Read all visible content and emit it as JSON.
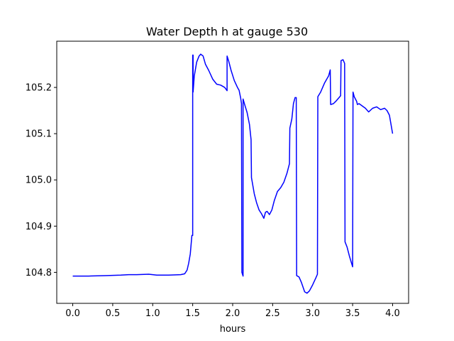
{
  "chart_data": {
    "type": "line",
    "title": "Water Depth h at gauge 530",
    "xlabel": "hours",
    "ylabel": "",
    "xlim": [
      -0.2,
      4.2
    ],
    "ylim": [
      104.733,
      105.3
    ],
    "xticks": [
      0.0,
      0.5,
      1.0,
      1.5,
      2.0,
      2.5,
      3.0,
      3.5,
      4.0
    ],
    "xtick_labels": [
      "0.0",
      "0.5",
      "1.0",
      "1.5",
      "2.0",
      "2.5",
      "3.0",
      "3.5",
      "4.0"
    ],
    "yticks": [
      104.8,
      104.9,
      105.0,
      105.1,
      105.2
    ],
    "ytick_labels": [
      "104.8",
      "104.9",
      "105.0",
      "105.1",
      "105.2"
    ],
    "grid": false,
    "series": [
      {
        "color": "#0000ff",
        "points": [
          [
            0.0,
            104.792
          ],
          [
            0.2,
            104.792
          ],
          [
            0.4,
            104.793
          ],
          [
            0.6,
            104.794
          ],
          [
            0.7,
            104.795
          ],
          [
            0.8,
            104.795
          ],
          [
            0.95,
            104.796
          ],
          [
            1.05,
            104.794
          ],
          [
            1.2,
            104.794
          ],
          [
            1.35,
            104.795
          ],
          [
            1.4,
            104.797
          ],
          [
            1.43,
            104.805
          ],
          [
            1.45,
            104.82
          ],
          [
            1.47,
            104.84
          ],
          [
            1.49,
            104.88
          ],
          [
            1.5,
            104.88
          ],
          [
            1.5,
            105.27
          ],
          [
            1.505,
            105.27
          ],
          [
            1.505,
            105.19
          ],
          [
            1.52,
            105.225
          ],
          [
            1.55,
            105.255
          ],
          [
            1.58,
            105.268
          ],
          [
            1.6,
            105.272
          ],
          [
            1.63,
            105.268
          ],
          [
            1.66,
            105.25
          ],
          [
            1.7,
            105.237
          ],
          [
            1.75,
            105.218
          ],
          [
            1.8,
            105.207
          ],
          [
            1.85,
            105.205
          ],
          [
            1.9,
            105.2
          ],
          [
            1.93,
            105.193
          ],
          [
            1.93,
            105.268
          ],
          [
            1.95,
            105.257
          ],
          [
            1.98,
            105.237
          ],
          [
            2.02,
            105.215
          ],
          [
            2.06,
            105.2
          ],
          [
            2.08,
            105.194
          ],
          [
            2.1,
            105.177
          ],
          [
            2.11,
            105.165
          ],
          [
            2.115,
            104.8
          ],
          [
            2.13,
            104.792
          ],
          [
            2.13,
            105.175
          ],
          [
            2.15,
            105.163
          ],
          [
            2.18,
            105.146
          ],
          [
            2.21,
            105.12
          ],
          [
            2.23,
            105.087
          ],
          [
            2.235,
            105.005
          ],
          [
            2.27,
            104.97
          ],
          [
            2.3,
            104.95
          ],
          [
            2.33,
            104.935
          ],
          [
            2.36,
            104.927
          ],
          [
            2.39,
            104.917
          ],
          [
            2.41,
            104.93
          ],
          [
            2.43,
            104.932
          ],
          [
            2.46,
            104.925
          ],
          [
            2.49,
            104.935
          ],
          [
            2.52,
            104.955
          ],
          [
            2.56,
            104.975
          ],
          [
            2.6,
            104.983
          ],
          [
            2.64,
            104.995
          ],
          [
            2.68,
            105.015
          ],
          [
            2.71,
            105.035
          ],
          [
            2.715,
            105.112
          ],
          [
            2.74,
            105.132
          ],
          [
            2.76,
            105.165
          ],
          [
            2.78,
            105.178
          ],
          [
            2.795,
            105.178
          ],
          [
            2.8,
            104.793
          ],
          [
            2.83,
            104.79
          ],
          [
            2.86,
            104.778
          ],
          [
            2.9,
            104.758
          ],
          [
            2.93,
            104.755
          ],
          [
            2.96,
            104.76
          ],
          [
            3.0,
            104.773
          ],
          [
            3.04,
            104.788
          ],
          [
            3.06,
            104.796
          ],
          [
            3.065,
            105.18
          ],
          [
            3.1,
            105.19
          ],
          [
            3.15,
            105.21
          ],
          [
            3.2,
            105.225
          ],
          [
            3.22,
            105.238
          ],
          [
            3.225,
            105.163
          ],
          [
            3.26,
            105.165
          ],
          [
            3.29,
            105.17
          ],
          [
            3.33,
            105.178
          ],
          [
            3.35,
            105.182
          ],
          [
            3.355,
            105.258
          ],
          [
            3.38,
            105.26
          ],
          [
            3.4,
            105.252
          ],
          [
            3.405,
            104.866
          ],
          [
            3.43,
            104.855
          ],
          [
            3.46,
            104.835
          ],
          [
            3.5,
            104.812
          ],
          [
            3.505,
            105.19
          ],
          [
            3.52,
            105.18
          ],
          [
            3.55,
            105.17
          ],
          [
            3.56,
            105.163
          ],
          [
            3.58,
            105.165
          ],
          [
            3.62,
            105.16
          ],
          [
            3.66,
            105.155
          ],
          [
            3.7,
            105.147
          ],
          [
            3.75,
            105.155
          ],
          [
            3.8,
            105.158
          ],
          [
            3.85,
            105.152
          ],
          [
            3.9,
            105.155
          ],
          [
            3.93,
            105.15
          ],
          [
            3.96,
            105.14
          ],
          [
            3.98,
            105.12
          ],
          [
            4.0,
            105.1
          ]
        ]
      }
    ]
  }
}
